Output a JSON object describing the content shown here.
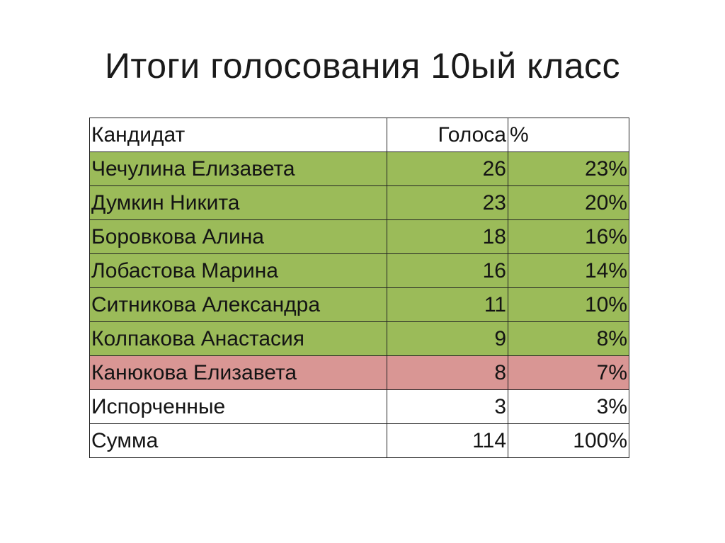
{
  "title": "Итоги голосования 10ый класс",
  "table": {
    "headers": {
      "candidate": "Кандидат",
      "votes": "Голоса",
      "percent": "%"
    },
    "rows": [
      {
        "name": "Чечулина Елизавета",
        "votes": "26",
        "percent": "23%",
        "status": "winner"
      },
      {
        "name": "Думкин Никита",
        "votes": "23",
        "percent": "20%",
        "status": "winner"
      },
      {
        "name": "Боровкова Алина",
        "votes": "18",
        "percent": "16%",
        "status": "winner"
      },
      {
        "name": "Лобастова Марина",
        "votes": "16",
        "percent": "14%",
        "status": "winner"
      },
      {
        "name": "Ситникова Александра",
        "votes": "11",
        "percent": "10%",
        "status": "winner"
      },
      {
        "name": "Колпакова Анастасия",
        "votes": "9",
        "percent": "8%",
        "status": "winner"
      },
      {
        "name": "Канюкова Елизавета",
        "votes": "8",
        "percent": "7%",
        "status": "loser"
      },
      {
        "name": "Испорченные",
        "votes": "3",
        "percent": "3%",
        "status": "plain"
      },
      {
        "name": "Сумма",
        "votes": "114",
        "percent": "100%",
        "status": "plain"
      }
    ]
  },
  "colors": {
    "winner_row": "#9bbb59",
    "loser_row": "#d99694",
    "plain_row": "#ffffff"
  }
}
